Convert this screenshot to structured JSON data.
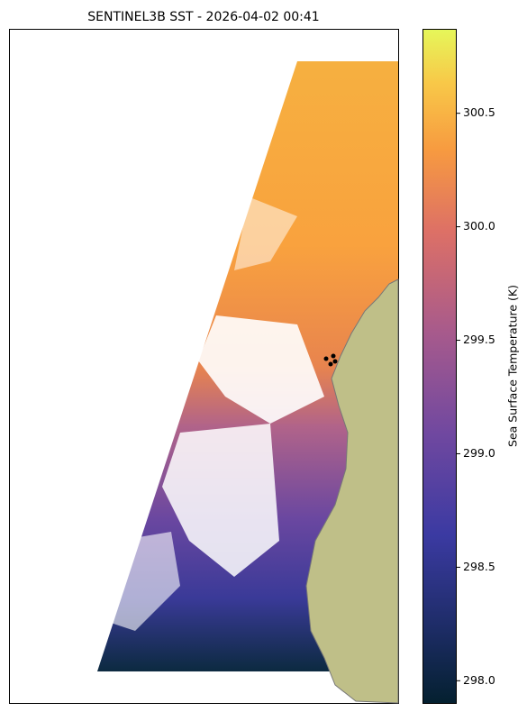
{
  "map": {
    "title": "SENTINEL3B SST - 2026-04-02 00:41",
    "colorbar": {
      "label": "Sea Surface Temperature (K)",
      "range": [
        297.9,
        300.87
      ],
      "ticks": [
        {
          "value": 298,
          "label": "298.0"
        },
        298.5,
        {
          "value": 299,
          "label": "299.0"
        },
        299.5,
        {
          "value": 300,
          "label": "300.0"
        },
        300.5
      ]
    }
  }
}
